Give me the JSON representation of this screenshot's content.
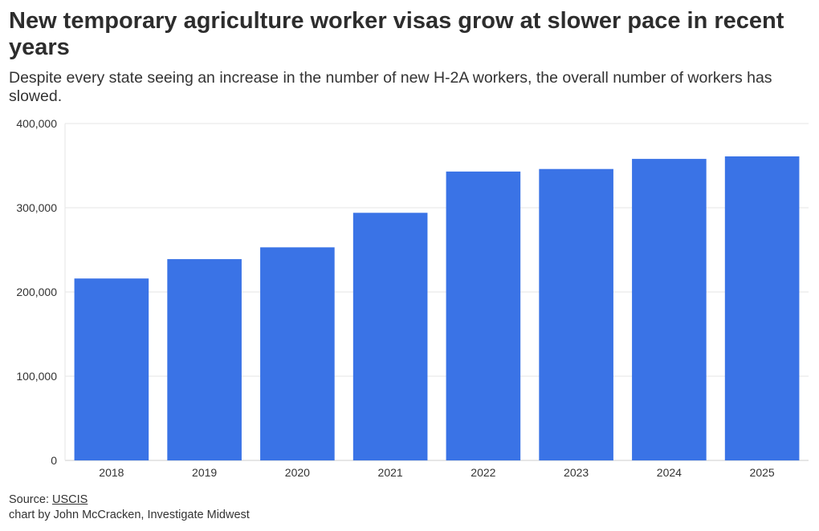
{
  "title": "New temporary agriculture worker visas grow at slower pace in recent years",
  "subtitle": "Despite every state seeing an increase in the number of new H-2A workers, the overall number of workers has slowed.",
  "colors": {
    "bar": "#3a73e6",
    "grid": "#e6e6e6",
    "text": "#333333"
  },
  "chart_data": {
    "type": "bar",
    "title": "New temporary agriculture worker visas grow at slower pace in recent years",
    "xlabel": "",
    "ylabel": "",
    "categories": [
      "2018",
      "2019",
      "2020",
      "2021",
      "2022",
      "2023",
      "2024",
      "2025"
    ],
    "values": [
      216000,
      239000,
      253000,
      294000,
      343000,
      346000,
      358000,
      361000
    ],
    "ylim": [
      0,
      400000
    ],
    "yticks": [
      0,
      100000,
      200000,
      300000,
      400000
    ],
    "ytick_labels": [
      "0",
      "100,000",
      "200,000",
      "300,000",
      "400,000"
    ],
    "grid": true
  },
  "footer": {
    "source_prefix": "Source: ",
    "source_link": "USCIS",
    "credit": "chart by John McCracken, Investigate Midwest"
  }
}
